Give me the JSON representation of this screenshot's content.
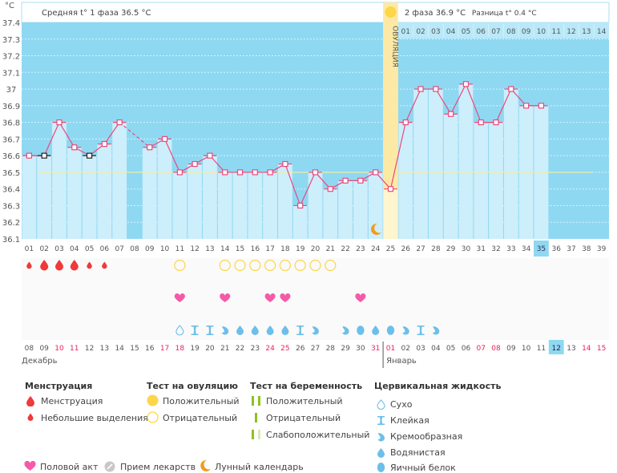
{
  "chart_data": {
    "type": "line",
    "unit_label": "°C",
    "ylim": [
      36.1,
      37.4
    ],
    "yticks": [
      "37.4",
      "37.3",
      "37.2",
      "37.1",
      "37",
      "36.9",
      "36.8",
      "36.7",
      "36.6",
      "36.5",
      "36.4",
      "36.3",
      "36.2",
      "36.1"
    ],
    "cycle_days": [
      "01",
      "02",
      "03",
      "04",
      "05",
      "06",
      "07",
      "08",
      "09",
      "10",
      "11",
      "12",
      "13",
      "14",
      "15",
      "16",
      "17",
      "18",
      "19",
      "20",
      "21",
      "22",
      "23",
      "24",
      "25",
      "26",
      "27",
      "28",
      "29",
      "30",
      "31",
      "32",
      "33",
      "34",
      "35",
      "36",
      "37",
      "38",
      "39"
    ],
    "temperatures": [
      36.6,
      36.6,
      36.8,
      36.65,
      36.6,
      36.67,
      36.8,
      null,
      36.65,
      36.7,
      36.5,
      36.55,
      36.6,
      36.5,
      36.5,
      36.5,
      36.5,
      36.55,
      36.3,
      36.5,
      36.4,
      36.45,
      36.45,
      36.5,
      36.4,
      36.8,
      37.0,
      37.0,
      36.85,
      37.03,
      36.8,
      36.8,
      37.0,
      36.9,
      36.9,
      null,
      null,
      null,
      null
    ],
    "excluded_point_days": [
      2,
      5
    ],
    "phase1_avg": 36.5,
    "current_day": 35,
    "ovulation_day": 25,
    "moon_day": 24,
    "phase2_days": [
      "01",
      "02",
      "03",
      "04",
      "05",
      "06",
      "07",
      "08",
      "09",
      "10",
      "11",
      "12",
      "13",
      "14"
    ],
    "calendar_dates": [
      "08",
      "09",
      "10",
      "11",
      "12",
      "13",
      "14",
      "15",
      "16",
      "17",
      "18",
      "19",
      "20",
      "21",
      "22",
      "23",
      "24",
      "25",
      "26",
      "27",
      "28",
      "29",
      "30",
      "31",
      "01",
      "02",
      "03",
      "04",
      "05",
      "06",
      "07",
      "08",
      "09",
      "10",
      "11",
      "12",
      "13",
      "14",
      "15"
    ],
    "weekend_flags": [
      0,
      0,
      1,
      1,
      0,
      0,
      0,
      0,
      0,
      1,
      1,
      0,
      0,
      0,
      0,
      0,
      1,
      1,
      0,
      0,
      0,
      0,
      0,
      1,
      1,
      0,
      0,
      0,
      0,
      0,
      1,
      1,
      0,
      0,
      0,
      0,
      0,
      1,
      1
    ],
    "today_calendar_index": 35,
    "months": [
      {
        "label": "Декабрь",
        "start_index": 0
      },
      {
        "label": "Январь",
        "start_index": 24
      }
    ],
    "menstruation": [
      2,
      3,
      3,
      3,
      2,
      2
    ],
    "ovulation_tests": {
      "negative_days": [
        11,
        14,
        15,
        16,
        17,
        18,
        19,
        20,
        21
      ]
    },
    "intercourse_days": [
      11,
      14,
      17,
      18,
      23
    ],
    "cervical_fluid": {
      "11": "dry",
      "12": "sticky",
      "13": "sticky",
      "14": "creamy",
      "15": "watery",
      "16": "watery",
      "17": "watery",
      "18": "watery",
      "19": "sticky",
      "20": "creamy",
      "22": "creamy",
      "23": "eggwhite",
      "24": "watery",
      "25": "eggwhite",
      "26": "creamy",
      "27": "sticky",
      "28": "creamy"
    }
  },
  "header": {
    "phase1": "Средняя t° 1 фаза 36.5 °C",
    "phase2": "2 фаза 36.9 °C",
    "diff": "Разница t° 0.4 °C",
    "ovulation": "ОВУЛЯЦИЯ"
  },
  "colors": {
    "sky": "#8fd8f2",
    "bar": "#cdeefb",
    "line": "#ea4a7d",
    "ovulation": "#fde9a6",
    "sun": "#fdd649",
    "avg_line": "#f4ef9a",
    "weekend": "#e8245a",
    "menstruation": "#f0393b",
    "heart": "#f55aa9",
    "fluid": "#6cbfea",
    "moon": "#f39a1a",
    "preg": "#8dc21f",
    "preg_light": "#d8eab6",
    "pill": "#c8c8c8"
  },
  "legend": {
    "menstruation": {
      "title": "Менструация",
      "items": [
        "Менструация",
        "Небольшие выделения"
      ]
    },
    "ovulation_test": {
      "title": "Тест на овуляцию",
      "items": [
        "Положительный",
        "Отрицательный"
      ]
    },
    "pregnancy_test": {
      "title": "Тест на беременность",
      "items": [
        "Положительный",
        "Отрицательный",
        "Слабоположительный"
      ]
    },
    "cervical": {
      "title": "Цервикальная жидкость",
      "items": [
        "Сухо",
        "Клейкая",
        "Кремообразная",
        "Водянистая",
        "Яичный белок"
      ]
    },
    "other": [
      "Половой акт",
      "Прием лекарств",
      "Лунный календарь"
    ]
  }
}
